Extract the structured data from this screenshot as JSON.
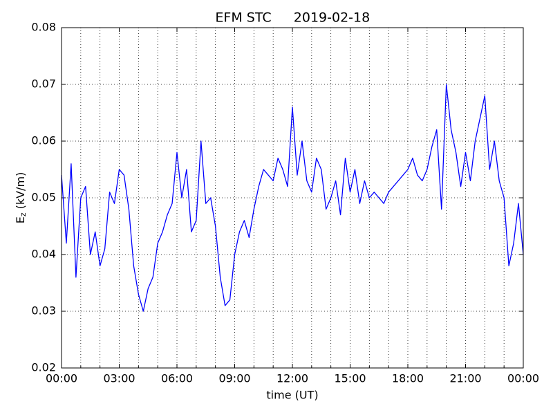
{
  "chart_data": {
    "type": "line",
    "title": "EFM STC",
    "subtitle": "2019-02-18",
    "xlabel": "time (UT)",
    "ylabel": {
      "main": "E",
      "sub": "z",
      "unit": "(kV/m)"
    },
    "x": [
      0,
      0.25,
      0.5,
      0.75,
      1,
      1.25,
      1.5,
      1.75,
      2,
      2.25,
      2.5,
      2.75,
      3,
      3.25,
      3.5,
      3.75,
      4,
      4.25,
      4.5,
      4.75,
      5,
      5.25,
      5.5,
      5.75,
      6,
      6.25,
      6.5,
      6.75,
      7,
      7.25,
      7.5,
      7.75,
      8,
      8.25,
      8.5,
      8.75,
      9,
      9.25,
      9.5,
      9.75,
      10,
      10.25,
      10.5,
      10.75,
      11,
      11.25,
      11.5,
      11.75,
      12,
      12.25,
      12.5,
      12.75,
      13,
      13.25,
      13.5,
      13.75,
      14,
      14.25,
      14.5,
      14.75,
      15,
      15.25,
      15.5,
      15.75,
      16,
      16.25,
      16.5,
      16.75,
      17,
      17.25,
      17.5,
      17.75,
      18,
      18.25,
      18.5,
      18.75,
      19,
      19.25,
      19.5,
      19.75,
      20,
      20.25,
      20.5,
      20.75,
      21,
      21.25,
      21.5,
      21.75,
      22,
      22.25,
      22.5,
      22.75,
      23,
      23.25,
      23.5,
      23.75,
      24
    ],
    "series": [
      {
        "name": "Ez",
        "color": "#0000ff",
        "values": [
          0.054,
          0.042,
          0.056,
          0.036,
          0.05,
          0.052,
          0.04,
          0.044,
          0.038,
          0.041,
          0.051,
          0.049,
          0.055,
          0.054,
          0.048,
          0.038,
          0.033,
          0.03,
          0.034,
          0.036,
          0.042,
          0.044,
          0.047,
          0.049,
          0.058,
          0.05,
          0.055,
          0.044,
          0.046,
          0.06,
          0.049,
          0.05,
          0.045,
          0.036,
          0.031,
          0.032,
          0.04,
          0.044,
          0.046,
          0.043,
          0.048,
          0.052,
          0.055,
          0.054,
          0.053,
          0.057,
          0.055,
          0.052,
          0.066,
          0.054,
          0.06,
          0.053,
          0.051,
          0.057,
          0.055,
          0.048,
          0.05,
          0.053,
          0.047,
          0.057,
          0.051,
          0.055,
          0.049,
          0.053,
          0.05,
          0.051,
          0.05,
          0.049,
          0.051,
          0.052,
          0.053,
          0.054,
          0.055,
          0.057,
          0.054,
          0.053,
          0.055,
          0.059,
          0.062,
          0.048,
          0.07,
          0.062,
          0.058,
          0.052,
          0.058,
          0.053,
          0.06,
          0.064,
          0.068,
          0.055,
          0.06,
          0.053,
          0.05,
          0.038,
          0.042,
          0.049,
          0.04
        ]
      }
    ],
    "xlim": [
      0,
      24
    ],
    "xticks": [
      {
        "value": 0,
        "label": "00:00"
      },
      {
        "value": 3,
        "label": "03:00"
      },
      {
        "value": 6,
        "label": "06:00"
      },
      {
        "value": 9,
        "label": "09:00"
      },
      {
        "value": 12,
        "label": "12:00"
      },
      {
        "value": 15,
        "label": "15:00"
      },
      {
        "value": 18,
        "label": "18:00"
      },
      {
        "value": 21,
        "label": "21:00"
      },
      {
        "value": 24,
        "label": "00:00"
      }
    ],
    "xminorticks": [
      1,
      2,
      4,
      5,
      7,
      8,
      10,
      11,
      13,
      14,
      16,
      17,
      19,
      20,
      22,
      23
    ],
    "ylim": [
      0.02,
      0.08
    ],
    "yticks": [
      0.02,
      0.03,
      0.04,
      0.05,
      0.06,
      0.07,
      0.08
    ],
    "grid": true
  }
}
